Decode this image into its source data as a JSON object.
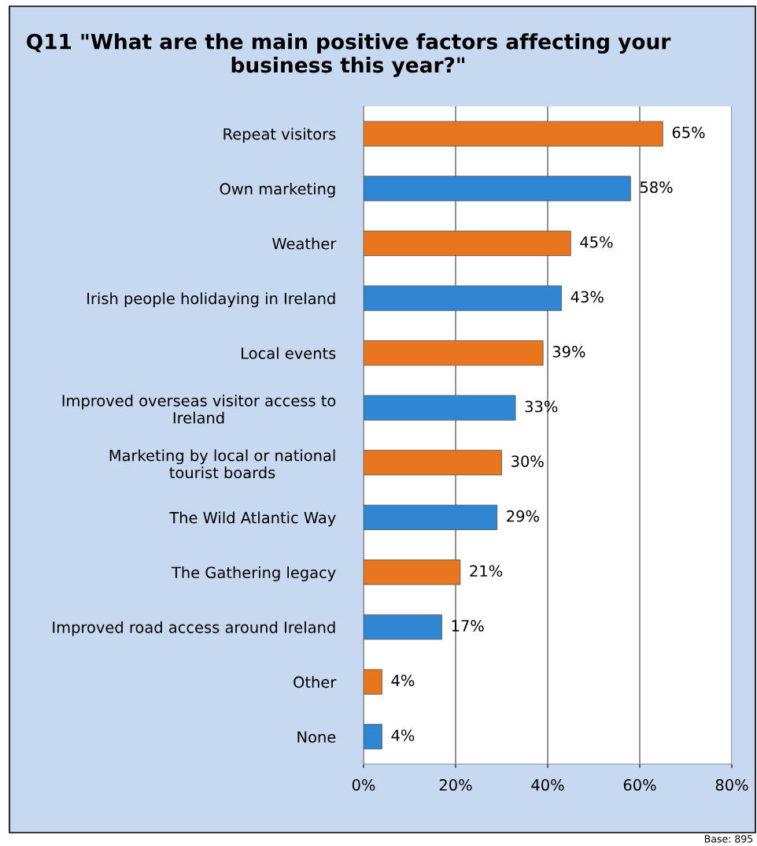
{
  "chart_data": {
    "type": "bar",
    "orientation": "horizontal",
    "title": "Q11 \"What are the main positive factors affecting your business this year?\"",
    "categories": [
      "Repeat visitors",
      "Own marketing",
      "Weather",
      "Irish people holidaying in Ireland",
      "Local events",
      "Improved overseas visitor access to Ireland",
      "Marketing by local or national tourist boards",
      "The Wild Atlantic Way",
      "The Gathering legacy",
      "Improved road access around Ireland",
      "Other",
      "None"
    ],
    "values": [
      65,
      58,
      45,
      43,
      39,
      33,
      30,
      29,
      21,
      17,
      4,
      4
    ],
    "value_labels": [
      "65%",
      "58%",
      "45%",
      "43%",
      "39%",
      "33%",
      "30%",
      "29%",
      "21%",
      "17%",
      "4%",
      "4%"
    ],
    "colors": [
      "#e8761e",
      "#2f86d2",
      "#e8761e",
      "#2f86d2",
      "#e8761e",
      "#2f86d2",
      "#e8761e",
      "#2f86d2",
      "#e8761e",
      "#2f86d2",
      "#e8761e",
      "#2f86d2"
    ],
    "xlim": [
      0,
      80
    ],
    "xticks": [
      {
        "value": 0,
        "label": "0%"
      },
      {
        "value": 20,
        "label": "20%"
      },
      {
        "value": 40,
        "label": "40%"
      },
      {
        "value": 60,
        "label": "60%"
      },
      {
        "value": 80,
        "label": "80%"
      }
    ],
    "grid": "x",
    "legend": false,
    "annotations": [
      "Base: 895"
    ]
  }
}
